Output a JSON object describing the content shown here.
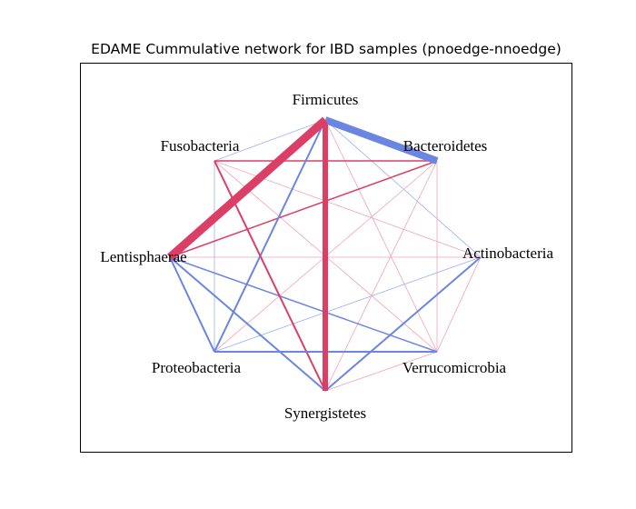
{
  "figure": {
    "title": "EDAME Cummulative network for IBD samples (pnoedge-nnoedge)"
  },
  "colors": {
    "positive": "#6b86e2",
    "negative": "#dc3f66",
    "positive_light": "#9fb1ee",
    "negative_light": "#f2a2b8"
  },
  "nodes": [
    {
      "id": "firmicutes",
      "label": "Firmicutes"
    },
    {
      "id": "bacteroidetes",
      "label": "Bacteroidetes"
    },
    {
      "id": "actinobacteria",
      "label": "Actinobacteria"
    },
    {
      "id": "verrucomicrobia",
      "label": "Verrucomicrobia"
    },
    {
      "id": "synergistetes",
      "label": "Synergistetes"
    },
    {
      "id": "proteobacteria",
      "label": "Proteobacteria"
    },
    {
      "id": "lentisphaerae",
      "label": "Lentisphaerae"
    },
    {
      "id": "fusobacteria",
      "label": "Fusobacteria"
    }
  ],
  "edges": [
    {
      "source": "firmicutes",
      "target": "bacteroidetes",
      "sign": "positive",
      "weight": 8
    },
    {
      "source": "firmicutes",
      "target": "lentisphaerae",
      "sign": "negative",
      "weight": 9
    },
    {
      "source": "firmicutes",
      "target": "synergistetes",
      "sign": "negative",
      "weight": 6
    },
    {
      "source": "firmicutes",
      "target": "proteobacteria",
      "sign": "positive",
      "weight": 2
    },
    {
      "source": "firmicutes",
      "target": "fusobacteria",
      "sign": "positive",
      "weight": 0.5
    },
    {
      "source": "firmicutes",
      "target": "actinobacteria",
      "sign": "positive",
      "weight": 0.5
    },
    {
      "source": "firmicutes",
      "target": "verrucomicrobia",
      "sign": "negative",
      "weight": 0.5
    },
    {
      "source": "bacteroidetes",
      "target": "fusobacteria",
      "sign": "negative",
      "weight": 1.5
    },
    {
      "source": "bacteroidetes",
      "target": "lentisphaerae",
      "sign": "negative",
      "weight": 1.5
    },
    {
      "source": "bacteroidetes",
      "target": "synergistetes",
      "sign": "negative",
      "weight": 0.5
    },
    {
      "source": "bacteroidetes",
      "target": "proteobacteria",
      "sign": "negative",
      "weight": 0.5
    },
    {
      "source": "bacteroidetes",
      "target": "verrucomicrobia",
      "sign": "negative",
      "weight": 0.5
    },
    {
      "source": "fusobacteria",
      "target": "synergistetes",
      "sign": "negative",
      "weight": 2
    },
    {
      "source": "fusobacteria",
      "target": "proteobacteria",
      "sign": "positive",
      "weight": 0.5
    },
    {
      "source": "fusobacteria",
      "target": "verrucomicrobia",
      "sign": "negative",
      "weight": 0.5
    },
    {
      "source": "fusobacteria",
      "target": "actinobacteria",
      "sign": "negative",
      "weight": 0.5
    },
    {
      "source": "lentisphaerae",
      "target": "synergistetes",
      "sign": "positive",
      "weight": 2
    },
    {
      "source": "lentisphaerae",
      "target": "verrucomicrobia",
      "sign": "positive",
      "weight": 1.5
    },
    {
      "source": "lentisphaerae",
      "target": "proteobacteria",
      "sign": "positive",
      "weight": 2
    },
    {
      "source": "lentisphaerae",
      "target": "actinobacteria",
      "sign": "negative",
      "weight": 0.5
    },
    {
      "source": "proteobacteria",
      "target": "verrucomicrobia",
      "sign": "positive",
      "weight": 2
    },
    {
      "source": "proteobacteria",
      "target": "actinobacteria",
      "sign": "positive",
      "weight": 0.5
    },
    {
      "source": "synergistetes",
      "target": "actinobacteria",
      "sign": "positive",
      "weight": 2
    },
    {
      "source": "synergistetes",
      "target": "verrucomicrobia",
      "sign": "negative",
      "weight": 0.5
    },
    {
      "source": "verrucomicrobia",
      "target": "actinobacteria",
      "sign": "negative",
      "weight": 0.5
    }
  ]
}
